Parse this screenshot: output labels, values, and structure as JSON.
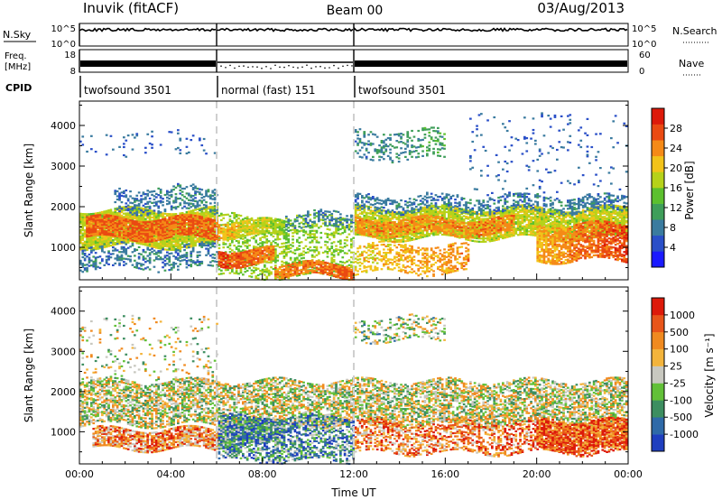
{
  "header": {
    "station": "Inuvik (fitACF)",
    "beam": "Beam 00",
    "date": "03/Aug/2013"
  },
  "strip_panels": {
    "nsky": {
      "left_label": "N.Sky",
      "right_label": "N.Search",
      "left_ticks": [
        "10^5",
        "10^0"
      ],
      "right_ticks": [
        "10^5",
        "10^0"
      ]
    },
    "freq": {
      "left_label_line1": "Freq.",
      "left_label_line2": "[MHz]",
      "right_label": "Nave",
      "left_ticks": [
        "18",
        "8"
      ],
      "right_ticks": [
        "60",
        "0"
      ]
    },
    "cpid": {
      "label": "CPID",
      "segments": [
        {
          "start_hour": 0,
          "end_hour": 6,
          "text": "twofsound 3501"
        },
        {
          "start_hour": 6,
          "end_hour": 12,
          "text": "normal (fast) 151"
        },
        {
          "start_hour": 12,
          "end_hour": 24,
          "text": "twofsound 3501"
        }
      ]
    }
  },
  "chart_data": [
    {
      "type": "heatmap",
      "name": "power",
      "ylabel": "Slant Range [km]",
      "ylim": [
        200,
        4600
      ],
      "yticks": [
        1000,
        2000,
        3000,
        4000
      ],
      "xlim": [
        0,
        24
      ],
      "colorbar": {
        "label": "Power [dB]",
        "range": [
          0,
          32
        ],
        "ticks": [
          "4",
          "8",
          "12",
          "16",
          "20",
          "24",
          "28"
        ],
        "colors": [
          "#1a1aff",
          "#2a4fc8",
          "#3a7b9f",
          "#3f9e5a",
          "#5cc02e",
          "#b6d21a",
          "#f2c31a",
          "#f58a17",
          "#ea4a12",
          "#dd1a0a"
        ]
      },
      "bands": [
        {
          "t0": 0,
          "t1": 6,
          "r0": 1050,
          "r1": 1950,
          "v0": 18,
          "v1": 18,
          "density": 0.9
        },
        {
          "t0": 0.2,
          "t1": 6,
          "r0": 1250,
          "r1": 1750,
          "v0": 26,
          "v1": 26,
          "density": 0.85
        },
        {
          "t0": 0,
          "t1": 6,
          "r0": 500,
          "r1": 1100,
          "v0": 8,
          "v1": 8,
          "density": 0.35
        },
        {
          "t0": 1.5,
          "t1": 6,
          "r0": 1900,
          "r1": 2500,
          "v0": 7,
          "v1": 9,
          "density": 0.35
        },
        {
          "t0": 0,
          "t1": 6,
          "r0": 3300,
          "r1": 3900,
          "v0": 6,
          "v1": 6,
          "density": 0.06
        },
        {
          "t0": 6,
          "t1": 12,
          "r0": 300,
          "r1": 1800,
          "v0": 16,
          "v1": 16,
          "density": 0.35
        },
        {
          "t0": 6,
          "t1": 8.5,
          "r0": 600,
          "r1": 1000,
          "v0": 28,
          "v1": 24,
          "density": 0.9
        },
        {
          "t0": 6,
          "t1": 9,
          "r0": 1300,
          "r1": 1700,
          "v0": 22,
          "v1": 16,
          "density": 0.8
        },
        {
          "t0": 8.5,
          "t1": 12,
          "r0": 320,
          "r1": 620,
          "v0": 24,
          "v1": 26,
          "density": 0.85
        },
        {
          "t0": 9,
          "t1": 12,
          "r0": 1500,
          "r1": 1900,
          "v0": 8,
          "v1": 8,
          "density": 0.3
        },
        {
          "t0": 12,
          "t1": 24,
          "r0": 1250,
          "r1": 2000,
          "v0": 18,
          "v1": 18,
          "density": 0.85
        },
        {
          "t0": 12,
          "t1": 19,
          "r0": 1350,
          "r1": 1750,
          "v0": 24,
          "v1": 24,
          "density": 0.7
        },
        {
          "t0": 12,
          "t1": 17,
          "r0": 400,
          "r1": 1100,
          "v0": 20,
          "v1": 24,
          "density": 0.4
        },
        {
          "t0": 20,
          "t1": 24,
          "r0": 700,
          "r1": 1600,
          "v0": 22,
          "v1": 28,
          "density": 0.75
        },
        {
          "t0": 12,
          "t1": 24,
          "r0": 1900,
          "r1": 2300,
          "v0": 8,
          "v1": 8,
          "density": 0.4
        },
        {
          "t0": 12,
          "t1": 16,
          "r0": 3200,
          "r1": 3900,
          "v0": 8,
          "v1": 12,
          "density": 0.25
        },
        {
          "t0": 17,
          "t1": 24,
          "r0": 2300,
          "r1": 4300,
          "v0": 6,
          "v1": 6,
          "density": 0.04
        }
      ]
    },
    {
      "type": "heatmap",
      "name": "velocity",
      "ylabel": "Slant Range [km]",
      "xlabel": "Time UT",
      "ylim": [
        200,
        4600
      ],
      "yticks": [
        1000,
        2000,
        3000,
        4000
      ],
      "xlim": [
        0,
        24
      ],
      "xticks": [
        "00:00",
        "04:00",
        "08:00",
        "12:00",
        "16:00",
        "20:00",
        "00:00"
      ],
      "colorbar": {
        "label": "Velocity [m s⁻¹]",
        "ticks": [
          "1000",
          "500",
          "100",
          "25",
          "-25",
          "-100",
          "-500",
          "-1000"
        ],
        "colors": [
          "#1f3fbf",
          "#2f6aa8",
          "#3d8e60",
          "#62c038",
          "#c8c8c0",
          "#f3b43c",
          "#f08a20",
          "#e8551a",
          "#dd1a0a"
        ]
      },
      "bands": [
        {
          "t0": 0,
          "t1": 24,
          "r0": 1200,
          "r1": 2300,
          "v0": 4,
          "v1": 4,
          "density": 0.6
        },
        {
          "t0": 0.5,
          "t1": 6,
          "r0": 600,
          "r1": 1100,
          "v0": 6,
          "v1": 6,
          "density": 0.75
        },
        {
          "t0": 6,
          "t1": 12,
          "r0": 300,
          "r1": 1400,
          "v0": 2,
          "v1": 2,
          "density": 0.55
        },
        {
          "t0": 6,
          "t1": 9,
          "r0": 700,
          "r1": 1300,
          "v0": 2,
          "v1": 2,
          "density": 0.8
        },
        {
          "t0": 12,
          "t1": 24,
          "r0": 500,
          "r1": 1300,
          "v0": 6,
          "v1": 7,
          "density": 0.5
        },
        {
          "t0": 20,
          "t1": 24,
          "r0": 600,
          "r1": 1300,
          "v0": 7,
          "v1": 7,
          "density": 0.75
        },
        {
          "t0": 12,
          "t1": 16,
          "r0": 3300,
          "r1": 3900,
          "v0": 3,
          "v1": 4,
          "density": 0.25
        },
        {
          "t0": 0,
          "t1": 6,
          "r0": 2300,
          "r1": 3900,
          "v0": 4,
          "v1": 4,
          "density": 0.08
        }
      ]
    }
  ]
}
